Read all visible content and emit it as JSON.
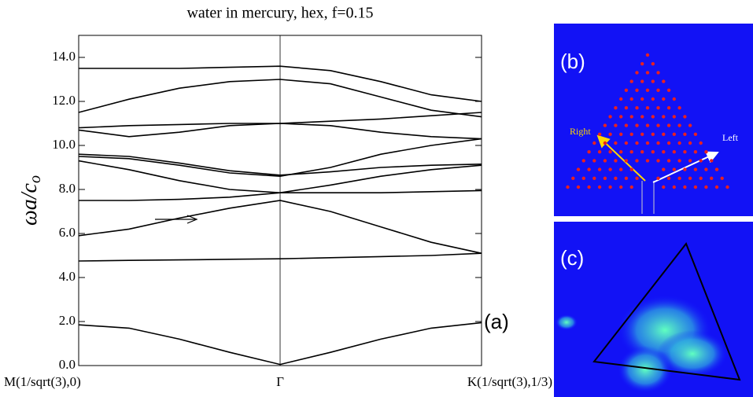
{
  "chart_data": {
    "type": "line",
    "title": "water in mercury, hex, f=0.15",
    "ylabel": "ωa/c",
    "ylabel_sub": "o",
    "panel_label": "(a)",
    "x": [
      0,
      0.25,
      0.5,
      0.75,
      1,
      1.25,
      1.5,
      1.75,
      2
    ],
    "xlim": [
      0,
      2
    ],
    "xticks": [
      {
        "value": 0,
        "label": "M(1/sqrt(3),0)"
      },
      {
        "value": 1,
        "label": "Γ"
      },
      {
        "value": 2,
        "label": "K(1/sqrt(3),1/3)"
      }
    ],
    "ylim": [
      0,
      15
    ],
    "yticks": [
      {
        "value": 0,
        "label": "0.0"
      },
      {
        "value": 2,
        "label": "2.0"
      },
      {
        "value": 4,
        "label": "4.0"
      },
      {
        "value": 6,
        "label": "6.0"
      },
      {
        "value": 8,
        "label": "8.0"
      },
      {
        "value": 10,
        "label": "10.0"
      },
      {
        "value": 12,
        "label": "12.0"
      },
      {
        "value": 14,
        "label": "14.0"
      }
    ],
    "series": [
      {
        "color": "#000000",
        "values": [
          1.85,
          1.7,
          1.2,
          0.6,
          0.05,
          0.6,
          1.2,
          1.7,
          1.95
        ]
      },
      {
        "color": "#000000",
        "values": [
          4.75,
          4.78,
          4.8,
          4.83,
          4.85,
          4.9,
          4.95,
          5.0,
          5.1
        ]
      },
      {
        "color": "#000000",
        "values": [
          5.9,
          6.2,
          6.7,
          7.15,
          7.5,
          7.0,
          6.3,
          5.6,
          5.1
        ]
      },
      {
        "color": "#000000",
        "values": [
          7.5,
          7.5,
          7.55,
          7.65,
          7.85,
          7.85,
          7.85,
          7.9,
          7.95
        ]
      },
      {
        "color": "#000000",
        "values": [
          9.3,
          8.9,
          8.4,
          8.0,
          7.85,
          8.2,
          8.6,
          8.9,
          9.1
        ]
      },
      {
        "color": "#000000",
        "values": [
          9.5,
          9.4,
          9.1,
          8.75,
          8.6,
          9.0,
          9.6,
          10.0,
          10.3
        ]
      },
      {
        "color": "#000000",
        "values": [
          9.6,
          9.5,
          9.2,
          8.85,
          8.65,
          8.8,
          9.0,
          9.1,
          9.15
        ]
      },
      {
        "color": "#000000",
        "values": [
          10.7,
          10.4,
          10.6,
          10.9,
          11.0,
          10.9,
          10.6,
          10.4,
          10.3
        ]
      },
      {
        "color": "#000000",
        "values": [
          10.8,
          10.9,
          10.95,
          11.0,
          11.0,
          11.1,
          11.2,
          11.35,
          11.5
        ]
      },
      {
        "color": "#000000",
        "values": [
          11.5,
          12.1,
          12.6,
          12.9,
          13.0,
          12.8,
          12.2,
          11.6,
          11.3
        ]
      },
      {
        "color": "#000000",
        "values": [
          13.5,
          13.5,
          13.5,
          13.55,
          13.6,
          13.4,
          12.9,
          12.3,
          12.0
        ]
      }
    ]
  },
  "panels": {
    "b": {
      "label": "(b)",
      "right": "Right",
      "left": "Left"
    },
    "c": {
      "label": "(c)"
    }
  }
}
